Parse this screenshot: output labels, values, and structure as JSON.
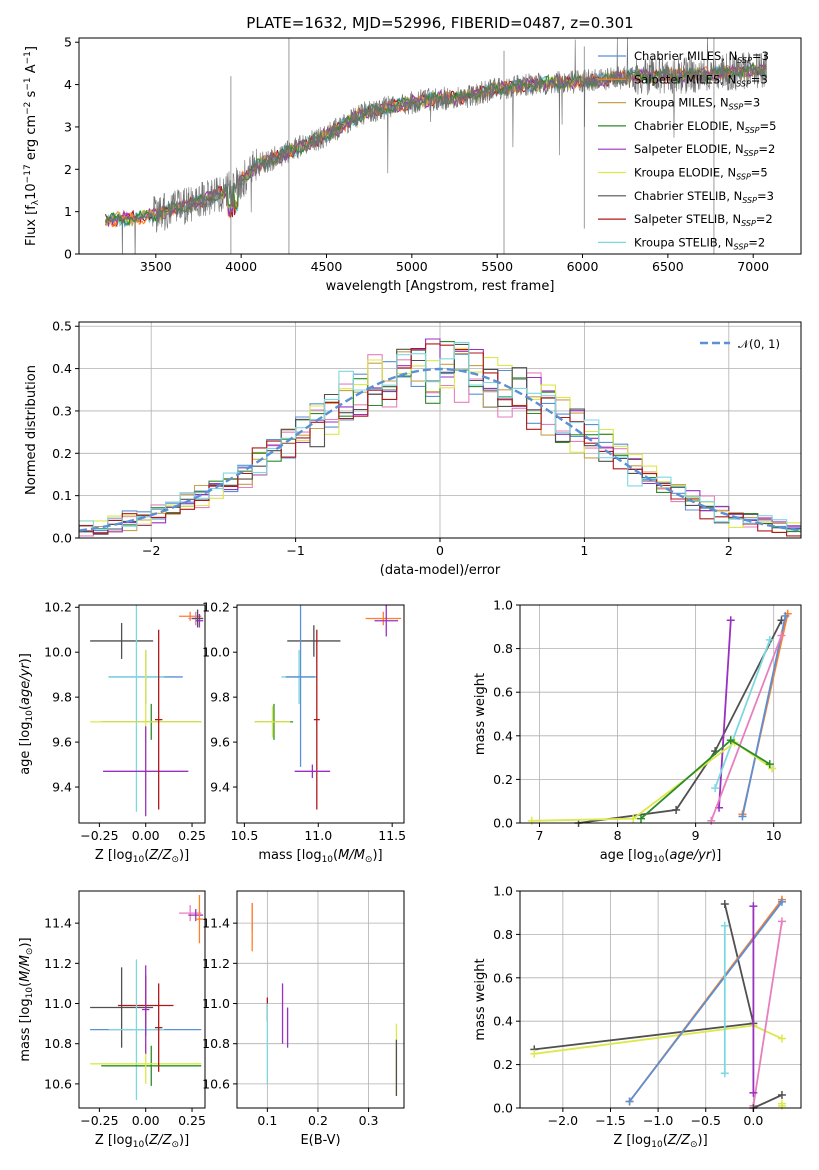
{
  "title": "PLATE=1632, MJD=52996, FIBERID=0487, z=0.301",
  "colors": {
    "chabrier_miles": "#5b8fd6",
    "salpeter_miles": "#ff7f2a",
    "kroupa_miles": "#c8a050",
    "chabrier_elodie": "#2c8c2c",
    "salpeter_elodie": "#9b30c0",
    "kroupa_elodie": "#dde84a",
    "chabrier_stelib": "#505050",
    "salpeter_stelib": "#b01818",
    "kroupa_stelib": "#7ed8e0",
    "pink_extra": "#e77fbf",
    "gaussian": "#5b8fd6"
  },
  "legend_spectrum": [
    "Chabrier MILES, N_SSP=3",
    "Salpeter MILES, N_SSP=3",
    "Kroupa MILES, N_SSP=3",
    "Chabrier ELODIE, N_SSP=5",
    "Salpeter ELODIE, N_SSP=2",
    "Kroupa ELODIE, N_SSP=5",
    "Chabrier STELIB, N_SSP=3",
    "Salpeter STELIB, N_SSP=2",
    "Kroupa STELIB, N_SSP=2"
  ],
  "legend_hist": "𝒩(0, 1)",
  "chart_data": [
    {
      "id": "spectrum",
      "type": "line",
      "xlabel": "wavelength [Angstrom, rest frame]",
      "ylabel": "Flux [f_λ 10^-17 erg cm^-2 s^-1 A^-1]",
      "xlim": [
        3050,
        7280
      ],
      "ylim": [
        0,
        5.1
      ],
      "xticks": [
        3500,
        4000,
        4500,
        5000,
        5500,
        6000,
        6500,
        7000
      ],
      "yticks": [
        0,
        1,
        2,
        3,
        4,
        5
      ],
      "grid": false,
      "legend_position": "upper-right",
      "continuum_x": [
        3200,
        3400,
        3600,
        3800,
        3950,
        4100,
        4300,
        4500,
        4700,
        4900,
        5100,
        5300,
        5500,
        5700,
        5900,
        6100,
        6300,
        6500,
        6700,
        6900,
        7080
      ],
      "continuum_y": [
        0.8,
        0.85,
        1.05,
        1.3,
        1.55,
        2.1,
        2.45,
        2.8,
        3.3,
        3.5,
        3.65,
        3.7,
        3.9,
        4.0,
        4.05,
        4.1,
        4.2,
        4.2,
        4.25,
        4.3,
        4.35
      ]
    },
    {
      "id": "residual-histogram",
      "type": "bar",
      "xlabel": "(data-model)/error",
      "ylabel": "Normed distribution",
      "xlim": [
        -2.5,
        2.5
      ],
      "ylim": [
        0,
        0.51
      ],
      "xticks": [
        -2,
        -1,
        0,
        1,
        2
      ],
      "yticks": [
        0.0,
        0.1,
        0.2,
        0.3,
        0.4,
        0.5
      ],
      "grid": true,
      "legend_position": "upper-right",
      "gaussian_mean": 0,
      "gaussian_sigma": 1,
      "bin_width": 0.1
    },
    {
      "id": "age-vs-Z",
      "type": "scatter",
      "xlabel": "Z [log10(Z/Z⊙)]",
      "ylabel": "age  [log10(age/yr)]",
      "xlim": [
        -0.36,
        0.32
      ],
      "ylim": [
        9.24,
        10.21
      ],
      "xticks": [
        -0.25,
        0.0,
        0.25
      ],
      "yticks": [
        9.4,
        9.6,
        9.8,
        10.0,
        10.2
      ],
      "grid": false,
      "points": [
        {
          "x": 0.24,
          "y": 10.16,
          "xerr": 0.06,
          "yerr": 0.02,
          "c": "salpeter_miles"
        },
        {
          "x": 0.27,
          "y": 10.15,
          "xerr": 0.04,
          "yerr": 0.03,
          "c": "pink_extra"
        },
        {
          "x": 0.29,
          "y": 10.14,
          "xerr": 0.02,
          "yerr": 0.03,
          "c": "salpeter_elodie"
        },
        {
          "x": 0.28,
          "y": 10.15,
          "xerr": 0.03,
          "yerr": 0.04,
          "c": "chabrier_stelib"
        },
        {
          "x": -0.13,
          "y": 10.05,
          "xerr": 0.17,
          "yerr": 0.08,
          "c": "chabrier_stelib"
        },
        {
          "x": 0.0,
          "y": 9.89,
          "xerr": 0.2,
          "yerr": 0.12,
          "c": "chabrier_miles"
        },
        {
          "x": -0.05,
          "y": 9.89,
          "xerr": 0.15,
          "yerr": 0.6,
          "c": "kroupa_stelib"
        },
        {
          "x": 0.03,
          "y": 9.69,
          "xerr": 0.27,
          "yerr": 0.08,
          "c": "chabrier_elodie"
        },
        {
          "x": 0.0,
          "y": 9.69,
          "xerr": 0.3,
          "yerr": 0.32,
          "c": "kroupa_elodie"
        },
        {
          "x": 0.0,
          "y": 9.47,
          "xerr": 0.23,
          "yerr": 0.2,
          "c": "salpeter_elodie"
        },
        {
          "x": 0.07,
          "y": 9.7,
          "xerr": 0.02,
          "yerr": 0.4,
          "c": "salpeter_stelib"
        }
      ]
    },
    {
      "id": "age-vs-mass",
      "type": "scatter",
      "xlabel": "mass [log10(M/M⊙)]",
      "ylabel": "",
      "xlim": [
        10.45,
        11.58
      ],
      "ylim": [
        9.24,
        10.21
      ],
      "xticks": [
        10.5,
        11.0,
        11.5
      ],
      "yticks": [
        9.4,
        9.6,
        9.8,
        10.0,
        10.2
      ],
      "grid": false,
      "points": [
        {
          "x": 11.44,
          "y": 10.15,
          "xerr": 0.12,
          "yerr": 0.03,
          "c": "salpeter_miles"
        },
        {
          "x": 11.46,
          "y": 10.14,
          "xerr": 0.08,
          "yerr": 0.07,
          "c": "salpeter_elodie"
        },
        {
          "x": 10.97,
          "y": 10.05,
          "xerr": 0.18,
          "yerr": 0.07,
          "c": "chabrier_stelib"
        },
        {
          "x": 10.87,
          "y": 9.89,
          "xerr": 0.12,
          "yerr": 0.12,
          "c": "kroupa_stelib"
        },
        {
          "x": 10.88,
          "y": 9.89,
          "xerr": 0.1,
          "yerr": 0.4,
          "c": "chabrier_miles"
        },
        {
          "x": 10.7,
          "y": 9.69,
          "xerr": 0.13,
          "yerr": 0.08,
          "c": "chabrier_elodie"
        },
        {
          "x": 10.69,
          "y": 9.69,
          "xerr": 0.12,
          "yerr": 0.07,
          "c": "kroupa_elodie"
        },
        {
          "x": 10.99,
          "y": 9.7,
          "xerr": 0.02,
          "yerr": 0.4,
          "c": "salpeter_stelib"
        },
        {
          "x": 10.96,
          "y": 9.47,
          "xerr": 0.12,
          "yerr": 0.03,
          "c": "salpeter_elodie"
        }
      ]
    },
    {
      "id": "mass-weight-vs-age",
      "type": "line",
      "xlabel": "age  [log10(age/yr)]",
      "ylabel": "mass weight",
      "xlim": [
        6.75,
        10.35
      ],
      "ylim": [
        0,
        1
      ],
      "xticks": [
        7,
        8,
        9,
        10
      ],
      "yticks": [
        0.0,
        0.2,
        0.4,
        0.6,
        0.8,
        1.0
      ],
      "grid": true,
      "series": [
        {
          "c": "chabrier_stelib",
          "x": [
            7.5,
            8.75,
            9.25,
            10.1
          ],
          "y": [
            0.0,
            0.06,
            0.33,
            0.93
          ]
        },
        {
          "c": "salpeter_miles",
          "x": [
            9.6,
            10.18
          ],
          "y": [
            0.04,
            0.96
          ]
        },
        {
          "c": "chabrier_miles",
          "x": [
            9.6,
            10.15
          ],
          "y": [
            0.03,
            0.95
          ]
        },
        {
          "c": "salpeter_elodie",
          "x": [
            9.3,
            9.45
          ],
          "y": [
            0.07,
            0.93
          ]
        },
        {
          "c": "pink_extra",
          "x": [
            9.2,
            10.1
          ],
          "y": [
            0.01,
            0.86
          ]
        },
        {
          "c": "kroupa_stelib",
          "x": [
            9.25,
            9.95
          ],
          "y": [
            0.16,
            0.84
          ]
        },
        {
          "c": "kroupa_elodie",
          "x": [
            6.9,
            8.2,
            9.5,
            9.98
          ],
          "y": [
            0.01,
            0.02,
            0.37,
            0.25
          ]
        },
        {
          "c": "chabrier_elodie",
          "x": [
            8.3,
            9.45,
            9.95
          ],
          "y": [
            0.02,
            0.38,
            0.27
          ]
        }
      ]
    },
    {
      "id": "mass-vs-Z",
      "type": "scatter",
      "xlabel": "Z [log10(Z/Z⊙)]",
      "ylabel": "mass [log10(M/M⊙)]",
      "xlim": [
        -0.36,
        0.32
      ],
      "ylim": [
        10.48,
        11.56
      ],
      "xticks": [
        -0.25,
        0.0,
        0.25
      ],
      "yticks": [
        10.6,
        10.8,
        11.0,
        11.2,
        11.4
      ],
      "grid": false,
      "points": [
        {
          "x": 0.24,
          "y": 11.45,
          "xerr": 0.06,
          "yerr": 0.04,
          "c": "pink_extra"
        },
        {
          "x": 0.27,
          "y": 11.44,
          "xerr": 0.04,
          "yerr": 0.03,
          "c": "salpeter_elodie"
        },
        {
          "x": 0.29,
          "y": 11.42,
          "xerr": 0.02,
          "yerr": 0.12,
          "c": "salpeter_miles"
        },
        {
          "x": -0.13,
          "y": 10.98,
          "xerr": 0.17,
          "yerr": 0.2,
          "c": "chabrier_stelib"
        },
        {
          "x": 0.0,
          "y": 10.99,
          "xerr": 0.15,
          "yerr": 0.15,
          "c": "salpeter_stelib"
        },
        {
          "x": 0.0,
          "y": 10.87,
          "xerr": 0.3,
          "yerr": 0.03,
          "c": "chabrier_miles"
        },
        {
          "x": -0.05,
          "y": 10.87,
          "xerr": 0.15,
          "yerr": 0.35,
          "c": "kroupa_stelib"
        },
        {
          "x": 0.03,
          "y": 10.69,
          "xerr": 0.27,
          "yerr": 0.1,
          "c": "chabrier_elodie"
        },
        {
          "x": 0.0,
          "y": 10.7,
          "xerr": 0.3,
          "yerr": 0.1,
          "c": "kroupa_elodie"
        },
        {
          "x": 0.0,
          "y": 10.97,
          "xerr": 0.02,
          "yerr": 0.22,
          "c": "salpeter_elodie"
        },
        {
          "x": 0.07,
          "y": 10.88,
          "xerr": 0.02,
          "yerr": 0.22,
          "c": "salpeter_stelib"
        }
      ]
    },
    {
      "id": "mass-vs-ebv",
      "type": "scatter",
      "xlabel": "E(B-V)",
      "ylabel": "",
      "xlim": [
        0.04,
        0.37
      ],
      "ylim": [
        10.48,
        11.56
      ],
      "xticks": [
        0.1,
        0.2,
        0.3
      ],
      "yticks": [
        10.6,
        10.8,
        11.0,
        11.2,
        11.4
      ],
      "grid": true,
      "points": [
        {
          "x": 0.07,
          "y": 11.43,
          "xerr": 0,
          "yerr": 0.07,
          "c": "pink_extra"
        },
        {
          "x": 0.07,
          "y": 11.38,
          "xerr": 0,
          "yerr": 0.12,
          "c": "salpeter_miles"
        },
        {
          "x": 0.1,
          "y": 10.97,
          "xerr": 0,
          "yerr": 0.06,
          "c": "salpeter_stelib"
        },
        {
          "x": 0.1,
          "y": 10.8,
          "xerr": 0,
          "yerr": 0.2,
          "c": "kroupa_stelib"
        },
        {
          "x": 0.13,
          "y": 10.95,
          "xerr": 0,
          "yerr": 0.15,
          "c": "salpeter_elodie"
        },
        {
          "x": 0.14,
          "y": 10.88,
          "xerr": 0,
          "yerr": 0.1,
          "c": "salpeter_elodie"
        },
        {
          "x": 0.355,
          "y": 10.72,
          "xerr": 0,
          "yerr": 0.18,
          "c": "kroupa_elodie"
        },
        {
          "x": 0.355,
          "y": 10.68,
          "xerr": 0,
          "yerr": 0.14,
          "c": "chabrier_stelib"
        }
      ]
    },
    {
      "id": "mass-weight-vs-Z",
      "type": "line",
      "xlabel": "Z [log10(Z/Z⊙)]",
      "ylabel": "mass weight",
      "xlim": [
        -2.45,
        0.5
      ],
      "ylim": [
        0,
        1
      ],
      "xticks": [
        -2.0,
        -1.5,
        -1.0,
        -0.5,
        0.0
      ],
      "yticks": [
        0.0,
        0.2,
        0.4,
        0.6,
        0.8,
        1.0
      ],
      "grid": true,
      "series": [
        {
          "c": "chabrier_stelib",
          "x": [
            -2.3,
            0.0,
            -0.3
          ],
          "y": [
            0.27,
            0.39,
            0.94
          ]
        },
        {
          "c": "kroupa_elodie",
          "x": [
            -2.3,
            0.0,
            0.3
          ],
          "y": [
            0.25,
            0.38,
            0.32
          ]
        },
        {
          "c": "salpeter_miles",
          "x": [
            -1.3,
            0.3
          ],
          "y": [
            0.03,
            0.96
          ]
        },
        {
          "c": "chabrier_miles",
          "x": [
            -1.3,
            0.3
          ],
          "y": [
            0.03,
            0.95
          ]
        },
        {
          "c": "pink_extra",
          "x": [
            0.0,
            0.3
          ],
          "y": [
            0.01,
            0.86
          ]
        },
        {
          "c": "kroupa_stelib",
          "x": [
            -0.3,
            -0.3
          ],
          "y": [
            0.16,
            0.84
          ]
        },
        {
          "c": "salpeter_elodie",
          "x": [
            0.0,
            0.0
          ],
          "y": [
            0.07,
            0.93
          ]
        },
        {
          "c": "chabrier_stelib",
          "x": [
            0.0,
            0.3
          ],
          "y": [
            0.0,
            0.06
          ]
        },
        {
          "c": "kroupa_elodie",
          "x": [
            0.3,
            0.3
          ],
          "y": [
            0.01,
            0.02
          ]
        }
      ]
    }
  ]
}
